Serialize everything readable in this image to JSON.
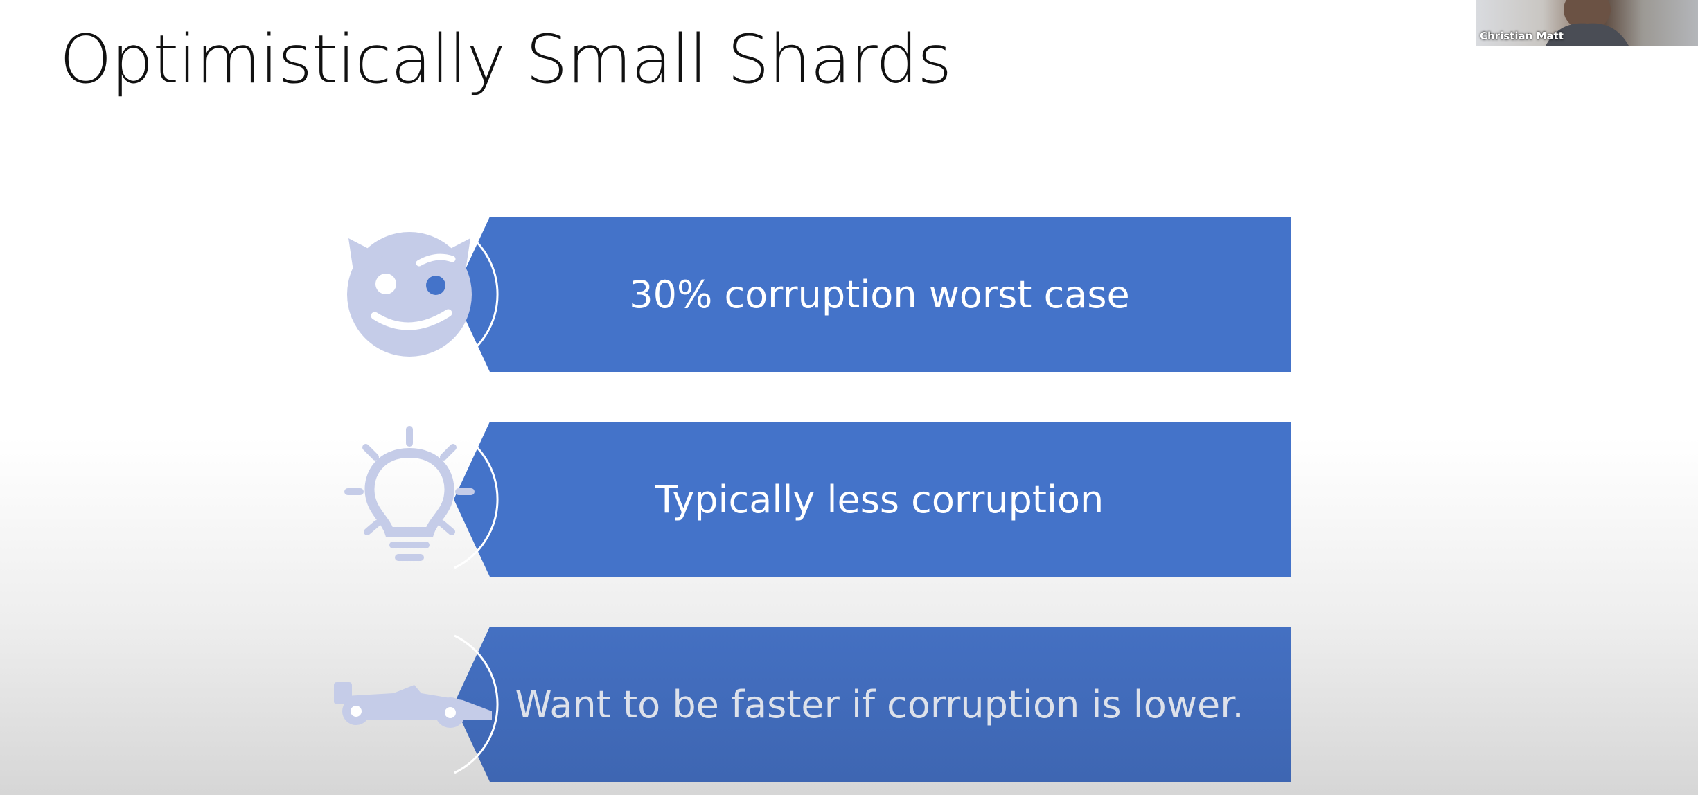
{
  "slide": {
    "title": "Optimistically Small Shards",
    "items": [
      {
        "text": "30% corruption worst case",
        "icon": "devil-face-icon"
      },
      {
        "text": "Typically less corruption",
        "icon": "lightbulb-icon"
      },
      {
        "text": "Want to be faster if corruption is lower.",
        "icon": "race-car-icon"
      }
    ]
  },
  "webcam": {
    "participant_name": "Christian Matt"
  },
  "colors": {
    "banner": "#4473c9",
    "banner_bottom": "#3e66b2",
    "icon": "#c5cce8",
    "title": "#111111",
    "text_light": "#ffffff",
    "text_dim": "#dde1ea"
  }
}
